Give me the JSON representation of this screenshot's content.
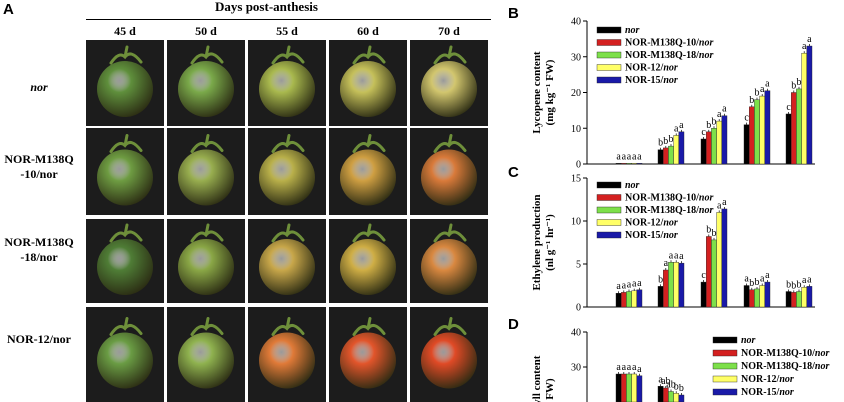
{
  "panel_a": {
    "letter": "A",
    "days_title": "Days post-anthesis",
    "day_labels": [
      "45 d",
      "50 d",
      "55 d",
      "60 d",
      "70 d"
    ],
    "rows": [
      {
        "line1": "nor",
        "line2": "",
        "italic1": true
      },
      {
        "line1": "NOR-M138Q",
        "line2": "-10/nor"
      },
      {
        "line1": "NOR-M138Q",
        "line2": "-18/nor"
      },
      {
        "line1": "NOR-12/nor",
        "line2": ""
      }
    ],
    "fruit_colors": [
      [
        "#5f8f3c",
        "#7aa94a",
        "#a9b94e",
        "#c5c05a",
        "#d2c66e"
      ],
      [
        "#6e9c42",
        "#98ae4f",
        "#b9b04a",
        "#cf9f42",
        "#d97a3a"
      ],
      [
        "#4f7d36",
        "#8aa746",
        "#c8a74a",
        "#cfae45",
        "#d98840"
      ],
      [
        "#6a9c44",
        "#8fb24f",
        "#e07a38",
        "#e2552b",
        "#e04a26"
      ]
    ]
  },
  "colors": {
    "nor": "#000000",
    "M10": "#d42020",
    "M18": "#7de04a",
    "N12": "#ffff66",
    "N15": "#1a1aa8"
  },
  "chart_data": [
    {
      "type": "bar",
      "panel": "B",
      "ylabel_line1": "Lycopene content",
      "ylabel_line2": "(mg kg⁻¹ FW)",
      "ylim": [
        0,
        40
      ],
      "yticks": [
        "0",
        "10",
        "20",
        "30",
        "40"
      ],
      "legend": [
        "nor",
        "NOR-M138Q-10/nor",
        "NOR-M138Q-18/nor",
        "NOR-12/nor",
        "NOR-15/nor"
      ],
      "legend_position": "top-left",
      "series": [
        {
          "key": "nor",
          "values": [
            0.2,
            4,
            7,
            11,
            14
          ]
        },
        {
          "key": "M10",
          "values": [
            0.2,
            4.5,
            9,
            16,
            20
          ]
        },
        {
          "key": "M18",
          "values": [
            0.2,
            5,
            10,
            18,
            21
          ]
        },
        {
          "key": "N12",
          "values": [
            0.2,
            8,
            12,
            19,
            31
          ]
        },
        {
          "key": "N15",
          "values": [
            0.2,
            9,
            13.5,
            20.5,
            33
          ]
        }
      ],
      "sig": [
        [
          "a",
          "a",
          "a",
          "a",
          "a"
        ],
        [
          "b",
          "b",
          "b",
          "a",
          "a"
        ],
        [
          "c",
          "b",
          "b",
          "a",
          "a"
        ],
        [
          "c",
          "b",
          "b",
          "a",
          "a"
        ],
        [
          "c",
          "b",
          "b",
          "a",
          "a"
        ]
      ]
    },
    {
      "type": "bar",
      "panel": "C",
      "ylabel_line1": "Ethylene production",
      "ylabel_line2": "(nl g⁻¹ hr⁻¹)",
      "ylim": [
        0,
        15
      ],
      "yticks": [
        "0",
        "5",
        "10",
        "15"
      ],
      "legend": [
        "nor",
        "NOR-M138Q-10/nor",
        "NOR-M138Q-18/nor",
        "NOR-12/nor",
        "NOR-15/nor"
      ],
      "legend_position": "top-left",
      "series": [
        {
          "key": "nor",
          "values": [
            1.6,
            2.4,
            2.9,
            2.5,
            1.8
          ]
        },
        {
          "key": "M10",
          "values": [
            1.7,
            4.3,
            8.2,
            2.0,
            1.7
          ]
        },
        {
          "key": "M18",
          "values": [
            1.8,
            5.2,
            7.8,
            2.1,
            1.8
          ]
        },
        {
          "key": "N12",
          "values": [
            1.9,
            5.2,
            11.0,
            2.5,
            2.3
          ]
        },
        {
          "key": "N15",
          "values": [
            2.0,
            5.1,
            11.4,
            2.9,
            2.4
          ]
        }
      ],
      "sig": [
        [
          "a",
          "a",
          "a",
          "a",
          "a"
        ],
        [
          "b",
          "a",
          "a",
          "a",
          "a"
        ],
        [
          "c",
          "b",
          "b",
          "a",
          "a"
        ],
        [
          "a",
          "b",
          "b",
          "a",
          "a"
        ],
        [
          "b",
          "b",
          "b",
          "a",
          "a"
        ]
      ]
    },
    {
      "type": "bar",
      "panel": "D",
      "ylabel_line1": "ophyll content",
      "ylabel_line2": "FW)",
      "ylim": [
        20,
        40
      ],
      "yticks": [
        "30",
        "40"
      ],
      "legend": [
        "nor",
        "NOR-M138Q-10/nor",
        "NOR-M138Q-18/nor",
        "NOR-12/nor",
        "NOR-15/nor"
      ],
      "legend_position": "top-right",
      "series": [
        {
          "key": "nor",
          "values": [
            28,
            24.5
          ]
        },
        {
          "key": "M10",
          "values": [
            28,
            24
          ]
        },
        {
          "key": "M18",
          "values": [
            28,
            23
          ]
        },
        {
          "key": "N12",
          "values": [
            28,
            22.5
          ]
        },
        {
          "key": "N15",
          "values": [
            27.5,
            22
          ]
        }
      ],
      "sig": [
        [
          "a",
          "a",
          "a",
          "a",
          "a"
        ],
        [
          "a",
          "ab",
          "ab",
          "b",
          "b"
        ]
      ]
    }
  ]
}
